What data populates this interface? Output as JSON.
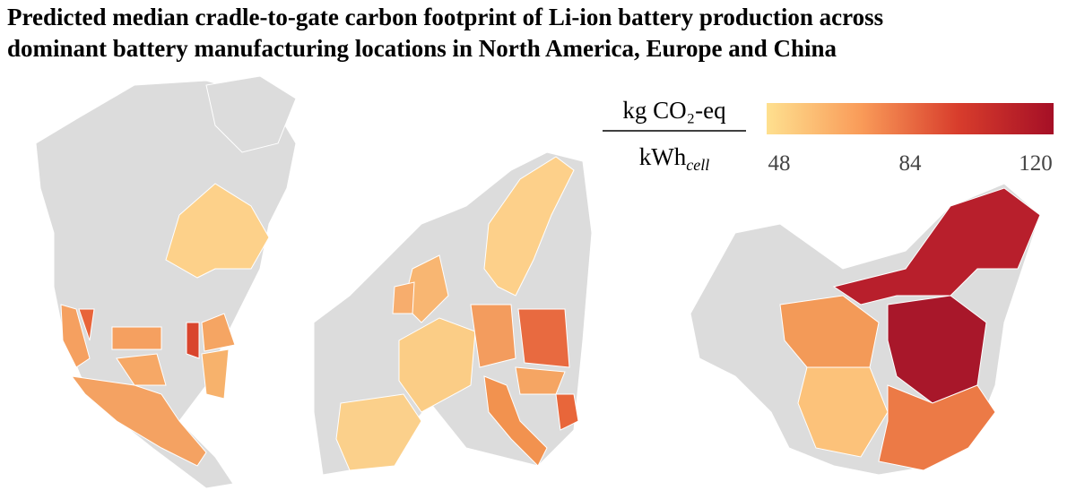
{
  "title": [
    "Predicted median cradle-to-gate carbon footprint of Li-ion battery production across",
    "dominant battery manufacturing locations in North America, Europe and China"
  ],
  "legend": {
    "numerator": "kg CO₂-eq",
    "denominator": "kWh",
    "denominator_subscript": "cell",
    "range": [
      48,
      120
    ],
    "ticks": [
      48,
      84,
      120
    ],
    "colors": [
      "#fee08f",
      "#f99a58",
      "#d83d2c",
      "#a50f26"
    ]
  }
}
